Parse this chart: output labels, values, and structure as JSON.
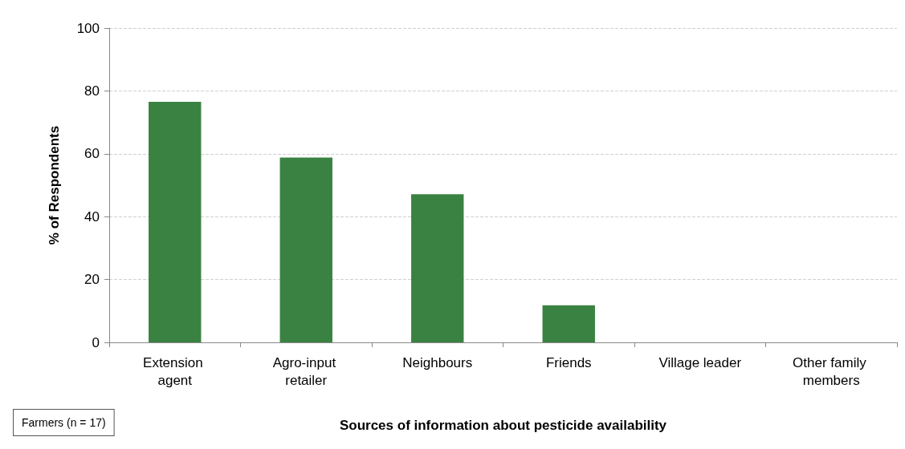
{
  "chart_data": {
    "type": "bar",
    "xlabel": "Sources of information about pesticide availability",
    "ylabel": "% of Respondents",
    "categories": [
      "Extension agent",
      "Agro-input retailer",
      "Neighbours",
      "Friends",
      "Village leader",
      "Other family members"
    ],
    "values": [
      76.5,
      58.8,
      47.1,
      11.8,
      0,
      0
    ],
    "color": "#3a8241",
    "ylim": [
      0,
      100
    ],
    "yticks": [
      0,
      20,
      40,
      60,
      80,
      100
    ],
    "grid": "y",
    "annotations": [
      "Farmers (n = 17)"
    ]
  }
}
